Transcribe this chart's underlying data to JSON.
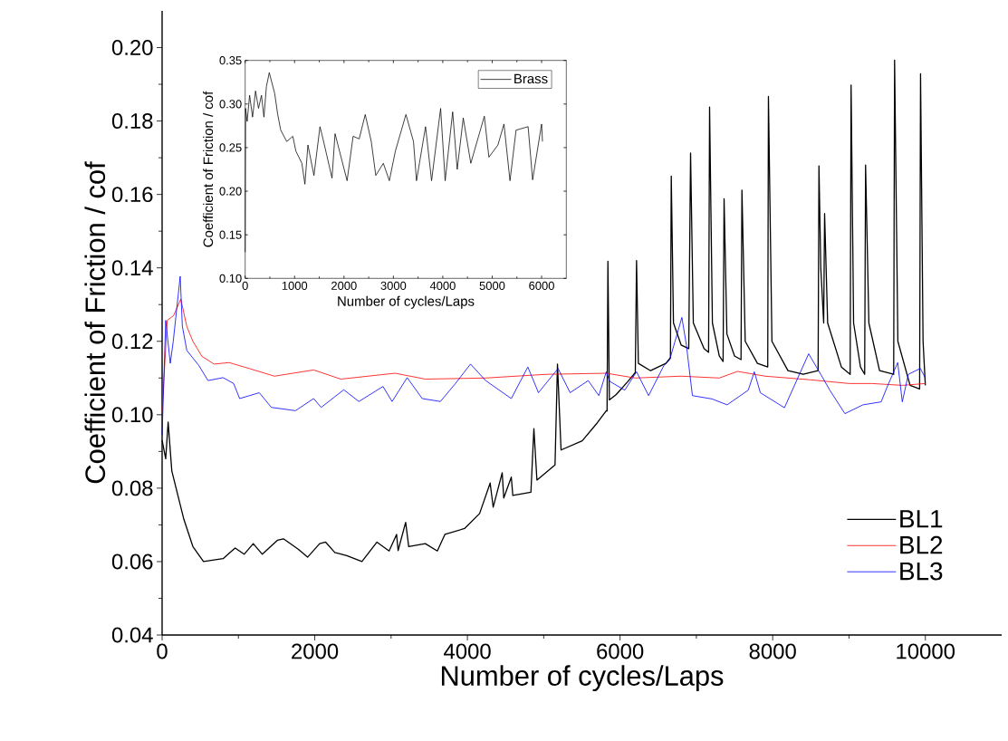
{
  "chart_data": [
    {
      "type": "line",
      "xlabel": "Number of cycles/Laps",
      "ylabel": "Coefficient of Friction / cof",
      "xlim": [
        0,
        11000
      ],
      "ylim": [
        0.04,
        0.21
      ],
      "xticks": [
        0,
        2000,
        4000,
        6000,
        8000,
        10000
      ],
      "yticks": [
        {
          "value": 0.04,
          "label": "0.04"
        },
        {
          "value": 0.06,
          "label": "0.06"
        },
        {
          "value": 0.08,
          "label": "0.08"
        },
        {
          "value": 0.1,
          "label": "0.10"
        },
        {
          "value": 0.12,
          "label": "0.12"
        },
        {
          "value": 0.14,
          "label": "0.14"
        },
        {
          "value": 0.16,
          "label": "0.16"
        },
        {
          "value": 0.18,
          "label": "0.18"
        },
        {
          "value": 0.2,
          "label": "0.20"
        }
      ],
      "legend": "bottom right",
      "series": [
        {
          "name": "BL1",
          "color": "#000000",
          "x": [
            0,
            47,
            79,
            127,
            285,
            403,
            542,
            799,
            957,
            1075,
            1194,
            1313,
            1510,
            1590,
            1787,
            1906,
            2064,
            2143,
            2262,
            2420,
            2618,
            2815,
            2974,
            3072,
            3092,
            3191,
            3231,
            3448,
            3606,
            3705,
            3962,
            4160,
            4298,
            4338,
            4456,
            4476,
            4575,
            4595,
            4832,
            4871,
            4911,
            5148,
            5180,
            5227,
            5504,
            5702,
            5820,
            5830,
            5841,
            5860,
            5950,
            6100,
            6200,
            6216,
            6240,
            6400,
            6600,
            6660,
            6671,
            6700,
            6800,
            6900,
            6924,
            6960,
            7100,
            7160,
            7173,
            7210,
            7300,
            7350,
            7363,
            7400,
            7500,
            7585,
            7597,
            7640,
            7800,
            7935,
            7944,
            7990,
            8200,
            8400,
            8595,
            8606,
            8630,
            8668,
            8680,
            8720,
            8900,
            9015,
            9027,
            9060,
            9150,
            9205,
            9217,
            9260,
            9400,
            9585,
            9597,
            9640,
            9800,
            9925,
            9937,
            9970,
            10000
          ],
          "values": [
            0.093,
            0.088,
            0.098,
            0.0847,
            0.0715,
            0.0641,
            0.06,
            0.0608,
            0.0637,
            0.062,
            0.0649,
            0.062,
            0.0658,
            0.0662,
            0.0633,
            0.0612,
            0.0649,
            0.0653,
            0.0625,
            0.0616,
            0.06,
            0.0653,
            0.0629,
            0.0674,
            0.063,
            0.0707,
            0.0641,
            0.0649,
            0.0629,
            0.0674,
            0.069,
            0.0731,
            0.0814,
            0.0748,
            0.0842,
            0.0773,
            0.083,
            0.078,
            0.0789,
            0.0962,
            0.0822,
            0.0863,
            0.1138,
            0.0904,
            0.0929,
            0.0978,
            0.1011,
            0.101,
            0.1418,
            0.104,
            0.1055,
            0.109,
            0.1115,
            0.142,
            0.114,
            0.112,
            0.114,
            0.1155,
            0.165,
            0.125,
            0.119,
            0.118,
            0.1713,
            0.125,
            0.118,
            0.117,
            0.1838,
            0.125,
            0.116,
            0.1145,
            0.1588,
            0.122,
            0.116,
            0.115,
            0.1612,
            0.12,
            0.114,
            0.113,
            0.1867,
            0.12,
            0.112,
            0.111,
            0.112,
            0.1678,
            0.14,
            0.125,
            0.1548,
            0.125,
            0.113,
            0.111,
            0.1898,
            0.125,
            0.113,
            0.111,
            0.168,
            0.125,
            0.112,
            0.111,
            0.1966,
            0.12,
            0.108,
            0.107,
            0.1929,
            0.12,
            0.108
          ]
        },
        {
          "name": "BL2",
          "color": "#ff0000",
          "x": [
            0,
            67,
            150,
            245,
            324,
            403,
            522,
            680,
            878,
            1155,
            1471,
            1985,
            2341,
            3053,
            3448,
            4239,
            5030,
            5820,
            6200,
            6800,
            7300,
            7540,
            7900,
            8500,
            9000,
            9300,
            9700,
            10000
          ],
          "values": [
            0.101,
            0.1257,
            0.127,
            0.1315,
            0.124,
            0.12,
            0.1159,
            0.1138,
            0.1142,
            0.1125,
            0.1105,
            0.1122,
            0.1097,
            0.1113,
            0.1097,
            0.11,
            0.111,
            0.1113,
            0.11,
            0.1105,
            0.11,
            0.1118,
            0.1105,
            0.1095,
            0.1085,
            0.1085,
            0.108,
            0.1085
          ]
        },
        {
          "name": "BL3",
          "color": "#0000ff",
          "x": [
            0,
            47,
            107,
            146,
            237,
            265,
            324,
            482,
            601,
            799,
            937,
            1016,
            1273,
            1431,
            1748,
            1985,
            2084,
            2380,
            2578,
            2894,
            3013,
            3211,
            3408,
            3646,
            3843,
            4041,
            4239,
            4575,
            4792,
            4931,
            5188,
            5346,
            5583,
            5722,
            5820,
            5864,
            6062,
            6216,
            6374,
            6572,
            6651,
            6810,
            6869,
            6948,
            7205,
            7403,
            7680,
            7759,
            7838,
            8154,
            8471,
            8630,
            8748,
            8946,
            9183,
            9421,
            9500,
            9638,
            9698,
            9777,
            9935,
            10000
          ],
          "values": [
            0.0945,
            0.1257,
            0.114,
            0.12,
            0.1377,
            0.1241,
            0.1175,
            0.1134,
            0.1093,
            0.1101,
            0.1085,
            0.1044,
            0.106,
            0.102,
            0.1011,
            0.1044,
            0.102,
            0.1068,
            0.1036,
            0.1077,
            0.1036,
            0.1101,
            0.1044,
            0.1036,
            0.1085,
            0.1138,
            0.1093,
            0.1044,
            0.113,
            0.106,
            0.1126,
            0.106,
            0.1093,
            0.1052,
            0.1117,
            0.1091,
            0.1067,
            0.1117,
            0.1052,
            0.1133,
            0.115,
            0.1265,
            0.119,
            0.1052,
            0.1043,
            0.1027,
            0.1067,
            0.1117,
            0.106,
            0.1019,
            0.1166,
            0.111,
            0.1067,
            0.1003,
            0.1027,
            0.1035,
            0.1076,
            0.1142,
            0.1035,
            0.111,
            0.1126,
            0.11
          ]
        }
      ]
    },
    {
      "type": "line",
      "xlabel": "Number of cycles/Laps",
      "ylabel": "Coefficient of Friction / cof",
      "xlim": [
        0,
        6500
      ],
      "ylim": [
        0.1,
        0.35
      ],
      "xticks": [
        0,
        1000,
        2000,
        3000,
        4000,
        5000,
        6000
      ],
      "yticks": [
        {
          "value": 0.1,
          "label": "0.10"
        },
        {
          "value": 0.15,
          "label": "0.15"
        },
        {
          "value": 0.2,
          "label": "0.20"
        },
        {
          "value": 0.25,
          "label": "0.25"
        },
        {
          "value": 0.3,
          "label": "0.30"
        },
        {
          "value": 0.35,
          "label": "0.35"
        }
      ],
      "legend": "top right",
      "series": [
        {
          "name": "Brass",
          "color": "#000000",
          "x": [
            0,
            8,
            40,
            90,
            150,
            210,
            270,
            330,
            380,
            430,
            488,
            598,
            659,
            720,
            842,
            965,
            1026,
            1148,
            1209,
            1270,
            1392,
            1514,
            1575,
            1758,
            1819,
            2063,
            2185,
            2308,
            2430,
            2552,
            2644,
            2796,
            2918,
            3040,
            3254,
            3407,
            3468,
            3651,
            3773,
            3956,
            4048,
            4200,
            4292,
            4414,
            4567,
            4841,
            4933,
            5116,
            5238,
            5360,
            5483,
            5727,
            5818,
            6000,
            6018
          ],
          "values": [
            0.13,
            0.295,
            0.28,
            0.31,
            0.285,
            0.315,
            0.295,
            0.31,
            0.285,
            0.32,
            0.336,
            0.312,
            0.288,
            0.27,
            0.257,
            0.263,
            0.246,
            0.232,
            0.208,
            0.253,
            0.218,
            0.274,
            0.26,
            0.215,
            0.266,
            0.212,
            0.263,
            0.26,
            0.288,
            0.257,
            0.218,
            0.232,
            0.212,
            0.246,
            0.288,
            0.257,
            0.212,
            0.274,
            0.212,
            0.295,
            0.212,
            0.291,
            0.225,
            0.284,
            0.232,
            0.286,
            0.239,
            0.253,
            0.277,
            0.212,
            0.27,
            0.274,
            0.213,
            0.277,
            0.257
          ]
        }
      ]
    }
  ]
}
